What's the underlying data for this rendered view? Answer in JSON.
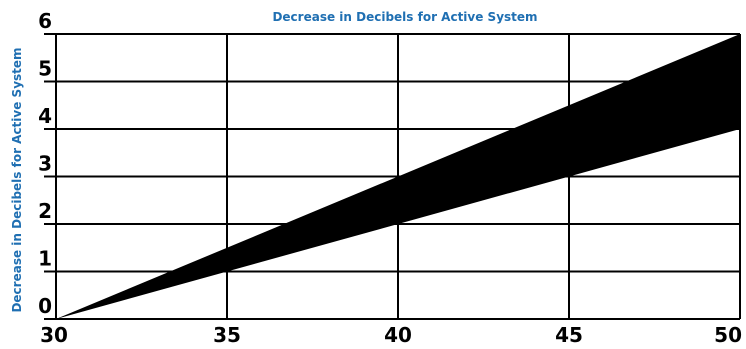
{
  "chart_data": {
    "type": "area",
    "title": "Decrease in Decibels for Active System",
    "xlabel": "",
    "ylabel": "Decrease in Decibels for Active System",
    "xlim": [
      30,
      50
    ],
    "ylim": [
      0,
      6
    ],
    "x_ticks": [
      "30",
      "35",
      "40",
      "45",
      "50"
    ],
    "y_ticks": [
      "0",
      "1",
      "2",
      "3",
      "4",
      "5",
      "6"
    ],
    "grid": true,
    "x": [
      30,
      50
    ],
    "band": {
      "upper": [
        0,
        6
      ],
      "lower": [
        0,
        4
      ]
    },
    "colors": {
      "band_fill": "#000000",
      "title": "#1f6fb2",
      "grid": "#000000"
    }
  }
}
